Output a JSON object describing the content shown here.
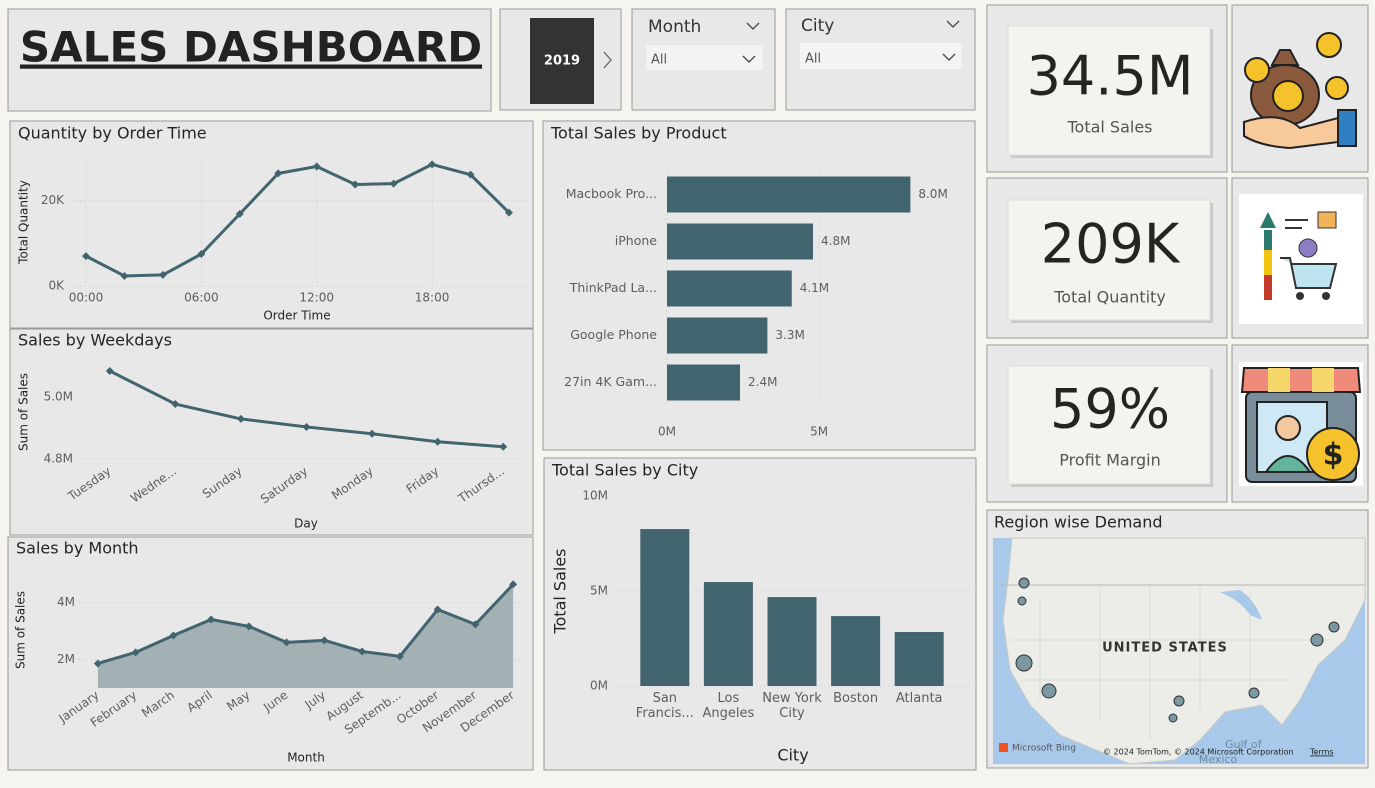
{
  "header": {
    "title": "SALES DASHBOARD"
  },
  "slicers": {
    "year": "2019",
    "month": {
      "label": "Month",
      "value": "All"
    },
    "city": {
      "label": "City",
      "value": "All"
    }
  },
  "kpis": [
    {
      "value": "34.5M",
      "label": "Total Sales"
    },
    {
      "value": "209K",
      "label": "Total Quantity"
    },
    {
      "value": "59%",
      "label": "Profit Margin"
    }
  ],
  "map": {
    "title": "Region wise Demand",
    "country": "UNITED STATES",
    "gulf": "Gulf of",
    "mexico": "Mexico",
    "attribution": "© 2024 TomTom, © 2024 Microsoft Corporation",
    "terms": "Terms",
    "provider": "Microsoft Bing"
  },
  "chart_data": [
    {
      "type": "line",
      "title": "Quantity by Order Time",
      "x_label": "Order Time",
      "y_label": "Total Quantity",
      "color": "#41646e",
      "grid": true,
      "x": [
        0,
        2,
        4,
        6,
        8,
        10,
        12,
        14,
        16,
        18,
        20,
        22
      ],
      "values": [
        7000,
        2350,
        2600,
        7500,
        16900,
        26400,
        28000,
        23800,
        24000,
        28500,
        26100,
        17200
      ],
      "xlim": [
        0,
        22
      ],
      "xticks": [
        {
          "value": 0,
          "label": "00:00"
        },
        {
          "value": 6,
          "label": "06:00"
        },
        {
          "value": 12,
          "label": "12:00"
        },
        {
          "value": 18,
          "label": "18:00"
        }
      ],
      "ylim": [
        0,
        30000
      ],
      "yticks": [
        {
          "value": 0,
          "label": "0K"
        },
        {
          "value": 20000,
          "label": "20K"
        }
      ]
    },
    {
      "type": "line",
      "title": "Sales by Weekdays",
      "x_label": "Day",
      "y_label": "Sum of Sales",
      "color": "#41646e",
      "grid": true,
      "categories": [
        "Tuesday",
        "Wedne...",
        "Sunday",
        "Saturday",
        "Monday",
        "Friday",
        "Thursd..."
      ],
      "values": [
        5084000,
        4977000,
        4929000,
        4903000,
        4881000,
        4855000,
        4839000
      ],
      "ylim": [
        4780000,
        5100000
      ],
      "yticks": [
        {
          "value": 4800000,
          "label": "4.8M"
        },
        {
          "value": 5000000,
          "label": "5.0M"
        }
      ]
    },
    {
      "type": "area",
      "title": "Sales by Month",
      "x_label": "Month",
      "y_label": "Sum of Sales",
      "color": "#41646e",
      "fill_color": "#a3b1b5",
      "grid": true,
      "categories": [
        "January",
        "February",
        "March",
        "April",
        "May",
        "June",
        "July",
        "August",
        "Septemb...",
        "October",
        "November",
        "December"
      ],
      "values": [
        1860000,
        2250000,
        2840000,
        3400000,
        3160000,
        2600000,
        2670000,
        2280000,
        2110000,
        3750000,
        3230000,
        4630000
      ],
      "ylim": [
        1000000,
        5100000
      ],
      "yticks": [
        {
          "value": 2000000,
          "label": "2M"
        },
        {
          "value": 4000000,
          "label": "4M"
        }
      ]
    },
    {
      "type": "bar",
      "horizontal": true,
      "title": "Total Sales by Product",
      "color": "#41646e",
      "grid": true,
      "categories": [
        "Macbook Pro...",
        "iPhone",
        "ThinkPad La...",
        "Google Phone",
        "27in 4K Gam..."
      ],
      "values": [
        8000000,
        4800000,
        4100000,
        3300000,
        2400000
      ],
      "value_labels": [
        "8.0M",
        "4.8M",
        "4.1M",
        "3.3M",
        "2.4M"
      ],
      "xlim": [
        0,
        9500000
      ],
      "xticks": [
        {
          "value": 0,
          "label": "0M"
        },
        {
          "value": 5000000,
          "label": "5M"
        }
      ]
    },
    {
      "type": "bar",
      "horizontal": false,
      "title": "Total Sales by City",
      "x_label": "City",
      "y_label": "Total Sales",
      "color": "#41646e",
      "grid": true,
      "categories": [
        "San Francis...",
        "Los Angeles",
        "New York City",
        "Boston",
        "Atlanta"
      ],
      "values": [
        8260000,
        5470000,
        4680000,
        3680000,
        2840000
      ],
      "ylim": [
        0,
        10000000
      ],
      "yticks": [
        {
          "value": 0,
          "label": "0M"
        },
        {
          "value": 5000000,
          "label": "5M"
        },
        {
          "value": 10000000,
          "label": "10M"
        }
      ]
    }
  ]
}
